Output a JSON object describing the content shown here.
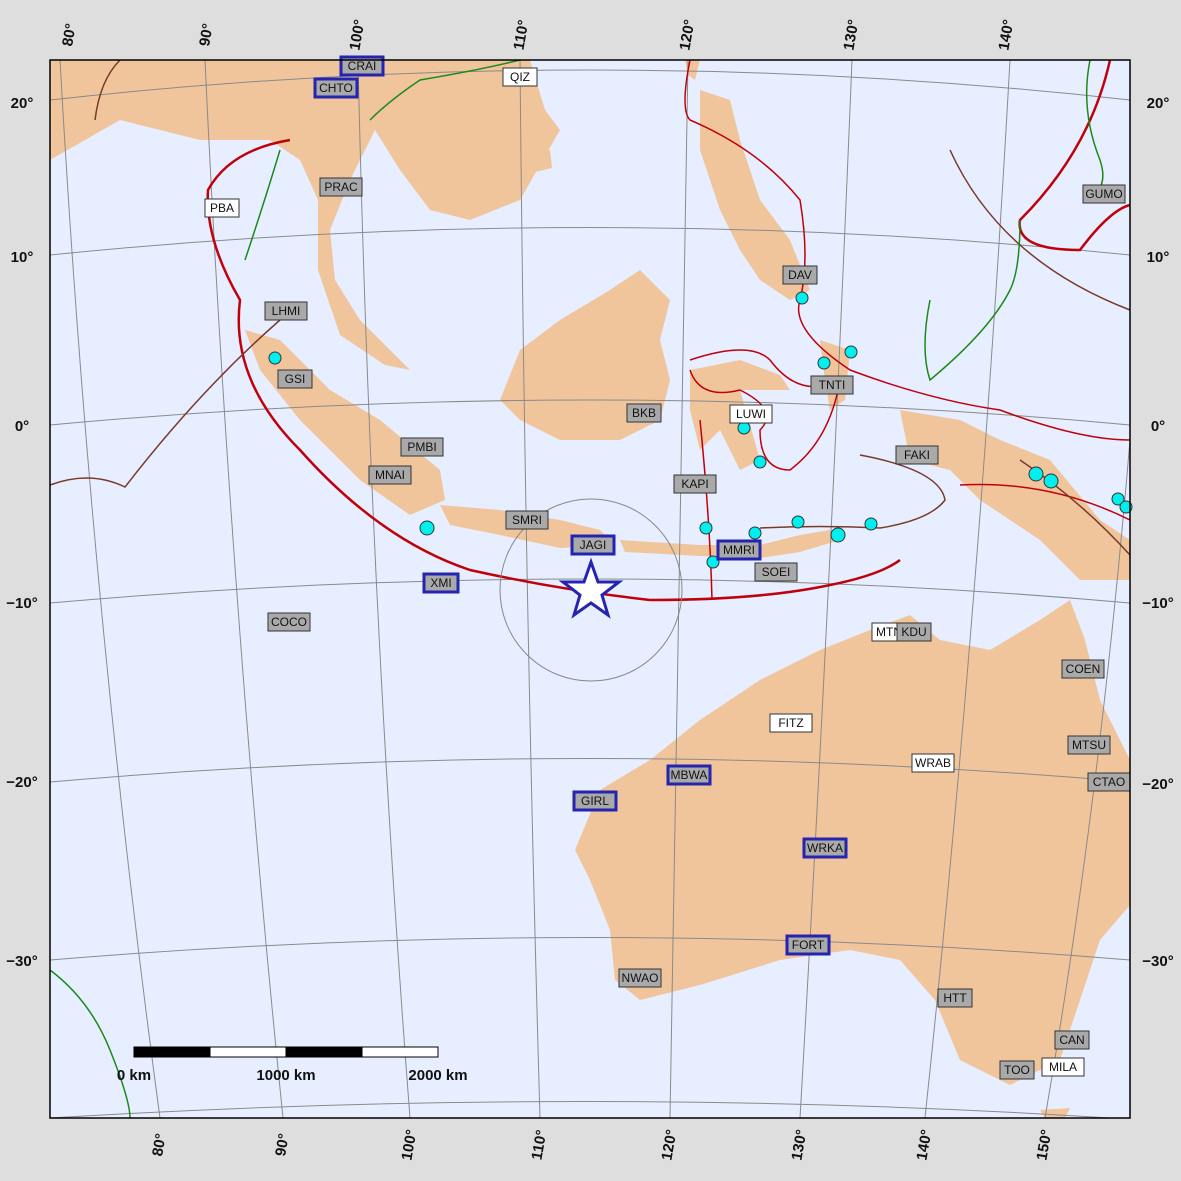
{
  "graticule": {
    "left": [
      "20°",
      "10°",
      "0°",
      "−10°",
      "−20°",
      "−30°"
    ],
    "right": [
      "20°",
      "10°",
      "0°",
      "−10°",
      "−20°",
      "−30°"
    ],
    "top": [
      "80°",
      "90°",
      "100°",
      "110°",
      "120°",
      "130°",
      "140°"
    ],
    "bottom": [
      "80°",
      "90°",
      "100°",
      "110°",
      "120°",
      "130°",
      "140°",
      "150°"
    ]
  },
  "stations": [
    {
      "code": "CRAI",
      "kind": "highlight"
    },
    {
      "code": "CHTO",
      "kind": "highlight"
    },
    {
      "code": "QIZ",
      "kind": "open"
    },
    {
      "code": "PRAC",
      "kind": "closed"
    },
    {
      "code": "PBA",
      "kind": "open"
    },
    {
      "code": "GUMO",
      "kind": "closed"
    },
    {
      "code": "DAV",
      "kind": "closed"
    },
    {
      "code": "LHMI",
      "kind": "closed"
    },
    {
      "code": "GSI",
      "kind": "closed"
    },
    {
      "code": "TNTI",
      "kind": "closed"
    },
    {
      "code": "LUWI",
      "kind": "open"
    },
    {
      "code": "BKB",
      "kind": "closed"
    },
    {
      "code": "PMBI",
      "kind": "closed"
    },
    {
      "code": "FAKI",
      "kind": "closed"
    },
    {
      "code": "MNAI",
      "kind": "closed"
    },
    {
      "code": "KAPI",
      "kind": "closed"
    },
    {
      "code": "SMRI",
      "kind": "closed"
    },
    {
      "code": "JAGI",
      "kind": "highlight"
    },
    {
      "code": "MMRI",
      "kind": "highlight"
    },
    {
      "code": "SOEI",
      "kind": "closed"
    },
    {
      "code": "XMI",
      "kind": "highlight"
    },
    {
      "code": "COCO",
      "kind": "closed"
    },
    {
      "code": "MTN",
      "kind": "open"
    },
    {
      "code": "KDU",
      "kind": "closed"
    },
    {
      "code": "COEN",
      "kind": "closed"
    },
    {
      "code": "FITZ",
      "kind": "open"
    },
    {
      "code": "MTSU",
      "kind": "closed"
    },
    {
      "code": "WRAB",
      "kind": "open"
    },
    {
      "code": "MBWA",
      "kind": "highlight"
    },
    {
      "code": "CTAO",
      "kind": "closed"
    },
    {
      "code": "GIRL",
      "kind": "highlight"
    },
    {
      "code": "WRKA",
      "kind": "highlight"
    },
    {
      "code": "FORT",
      "kind": "highlight"
    },
    {
      "code": "NWAO",
      "kind": "closed"
    },
    {
      "code": "HTT",
      "kind": "closed"
    },
    {
      "code": "CAN",
      "kind": "closed"
    },
    {
      "code": "TOO",
      "kind": "closed"
    },
    {
      "code": "MILA",
      "kind": "open"
    }
  ],
  "scale_bar": {
    "labels": [
      "0 km",
      "1000 km",
      "2000 km"
    ]
  }
}
